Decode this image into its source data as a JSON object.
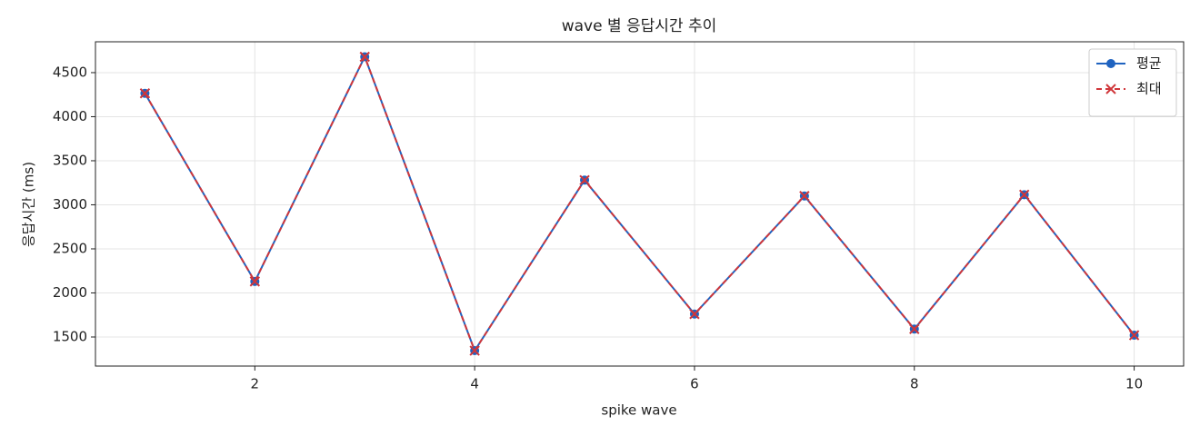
{
  "chart_data": {
    "type": "line",
    "title": "wave 별 응답시간 추이",
    "x_label": "spike wave",
    "y_label": "응답시간 (ms)",
    "x": [
      1,
      2,
      3,
      4,
      5,
      6,
      7,
      8,
      9,
      10
    ],
    "series": [
      {
        "name": "평균",
        "color": "#1f63c0",
        "linestyle": "solid",
        "marker": "circle",
        "values": [
          4265,
          2130,
          4680,
          1345,
          3280,
          1760,
          3100,
          1590,
          3115,
          1520
        ]
      },
      {
        "name": "최대",
        "color": "#d0363a",
        "linestyle": "dashed",
        "marker": "x",
        "values": [
          4265,
          2130,
          4680,
          1345,
          3280,
          1760,
          3100,
          1590,
          3115,
          1520
        ]
      }
    ],
    "xlim": [
      0.55,
      10.45
    ],
    "ylim": [
      1170,
      4850
    ],
    "xticks": [
      2,
      4,
      6,
      8,
      10
    ],
    "yticks": [
      1500,
      2000,
      2500,
      3000,
      3500,
      4000,
      4500
    ],
    "grid": true,
    "legend": "upper right"
  }
}
